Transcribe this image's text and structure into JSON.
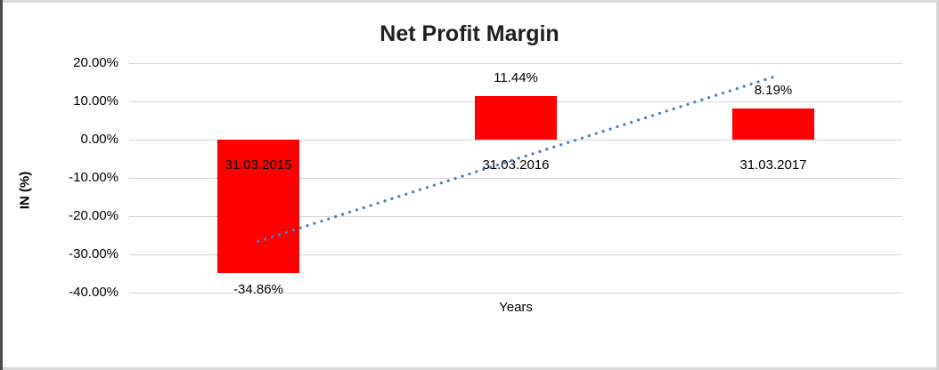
{
  "frame": {
    "background": "#ffffff",
    "border_dark": "#4a4a4a",
    "border_light": "#d9d9d9"
  },
  "chart_data": {
    "type": "bar",
    "title": "Net Profit Margin",
    "xlabel": "Years",
    "ylabel": "IN (%)",
    "categories": [
      "31.03.2015",
      "31.03.2016",
      "31.03.2017"
    ],
    "values": [
      -34.86,
      11.44,
      8.19
    ],
    "value_labels": [
      "-34.86%",
      "11.44%",
      "8.19%"
    ],
    "ylim": [
      -40,
      20
    ],
    "ytick_values": [
      20,
      10,
      0,
      -10,
      -20,
      -30,
      -40
    ],
    "ytick_labels": [
      "20.00%",
      "10.00%",
      "0.00%",
      "-10.00%",
      "-20.00%",
      "-30.00%",
      "-40.00%"
    ],
    "grid": true,
    "legend": "none",
    "bar_color": "#ff0000",
    "gridline_color": "#d6d6d6",
    "trendline": {
      "type": "linear",
      "style": "dotted",
      "color": "#4a7ebf",
      "start_value": -26.6,
      "end_value": 16.4
    }
  }
}
